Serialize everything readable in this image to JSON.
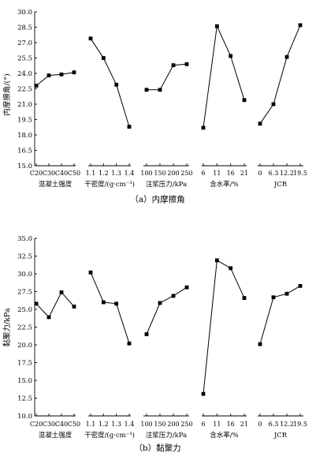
{
  "chart_data": [
    {
      "type": "line",
      "caption": "（a）内摩擦角",
      "ylabel": "内摩擦角/(°)",
      "ylim": [
        15.0,
        30.0
      ],
      "yticks": [
        "15.0",
        "16.5",
        "18.0",
        "19.5",
        "21.0",
        "22.5",
        "24.0",
        "25.5",
        "27.0",
        "28.5",
        "30.0"
      ],
      "yticks_values": [
        15.0,
        16.5,
        18.0,
        19.5,
        21.0,
        22.5,
        24.0,
        25.5,
        27.0,
        28.5,
        30.0
      ],
      "groups": [
        {
          "title": "混凝土强度",
          "categories": [
            "C20",
            "C30",
            "C40",
            "C50"
          ],
          "values": [
            22.8,
            23.8,
            23.9,
            24.1
          ]
        },
        {
          "title": "干密度/(g·cm⁻³)",
          "categories": [
            "1.1",
            "1.2",
            "1.3",
            "1.4"
          ],
          "values": [
            27.4,
            25.5,
            22.9,
            18.8
          ]
        },
        {
          "title": "注浆压力/kPa",
          "categories": [
            "100",
            "150",
            "200",
            "250"
          ],
          "values": [
            22.4,
            22.4,
            24.8,
            24.9
          ]
        },
        {
          "title": "含水率/%",
          "categories": [
            "6",
            "11",
            "16",
            "21"
          ],
          "values": [
            18.7,
            28.6,
            25.7,
            21.4
          ]
        },
        {
          "title": "JCR",
          "categories": [
            "0",
            "6.3",
            "12.2",
            "19.5"
          ],
          "values": [
            19.1,
            21.0,
            25.6,
            28.7
          ]
        }
      ]
    },
    {
      "type": "line",
      "caption": "（b）黏聚力",
      "ylabel": "黏聚力/kPa",
      "ylim": [
        10.0,
        35.0
      ],
      "yticks": [
        "10.0",
        "12.5",
        "15.0",
        "17.5",
        "20.0",
        "22.5",
        "25.0",
        "27.5",
        "30.0",
        "32.5",
        "35.0"
      ],
      "yticks_values": [
        10.0,
        12.5,
        15.0,
        17.5,
        20.0,
        22.5,
        25.0,
        27.5,
        30.0,
        32.5,
        35.0
      ],
      "groups": [
        {
          "title": "混凝土强度",
          "categories": [
            "C20",
            "C30",
            "C40",
            "C50"
          ],
          "values": [
            25.8,
            23.9,
            27.4,
            25.4
          ]
        },
        {
          "title": "干密度/(g·cm⁻³)",
          "categories": [
            "1.1",
            "1.2",
            "1.3",
            "1.4"
          ],
          "values": [
            30.2,
            26.0,
            25.8,
            20.2
          ]
        },
        {
          "title": "注浆压力/kPa",
          "categories": [
            "100",
            "150",
            "200",
            "250"
          ],
          "values": [
            21.5,
            25.9,
            26.9,
            28.1
          ]
        },
        {
          "title": "含水率/%",
          "categories": [
            "6",
            "11",
            "16",
            "21"
          ],
          "values": [
            13.1,
            31.9,
            30.8,
            26.6
          ]
        },
        {
          "title": "JCR",
          "categories": [
            "0",
            "6.3",
            "12.2",
            "19.5"
          ],
          "values": [
            20.1,
            26.7,
            27.2,
            28.3
          ]
        }
      ]
    }
  ]
}
